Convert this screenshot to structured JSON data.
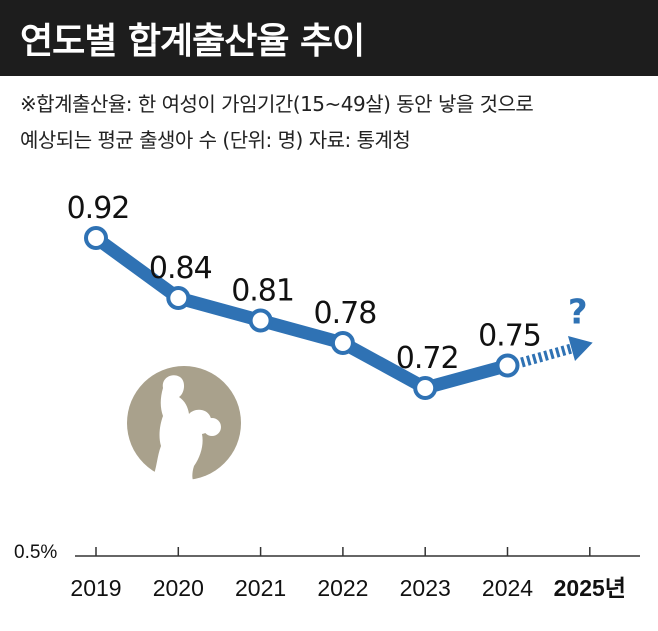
{
  "header": {
    "title": "연도별 합계출산율 추이"
  },
  "notes": {
    "line1": "※합계출산율: 한 여성이 가임기간(15~49살) 동안 낳을 것으로",
    "line2": "예상되는 평균 출생아 수  (단위: 명)  자료: 통계청"
  },
  "chart_data": {
    "type": "line",
    "categories": [
      "2019",
      "2020",
      "2021",
      "2022",
      "2023",
      "2024",
      "2025년"
    ],
    "series": [
      {
        "values": [
          0.92,
          0.84,
          0.81,
          0.78,
          0.72,
          0.75,
          null
        ]
      }
    ],
    "value_labels": [
      "0.92",
      "0.84",
      "0.81",
      "0.78",
      "0.72",
      "0.75"
    ],
    "forecast_marker": "?",
    "ytick_label": "0.5%",
    "ylim": [
      0.5,
      0.95
    ],
    "grid": false,
    "colors": {
      "line": "#2f72b4",
      "marker_fill": "#ffffff",
      "arrow": "#2f72b4",
      "question_mark": "#2f72b4",
      "illustration_bg": "#a9a18c",
      "illustration_figure": "#ffffff"
    },
    "decoration": "mother-holding-baby-silhouette"
  }
}
